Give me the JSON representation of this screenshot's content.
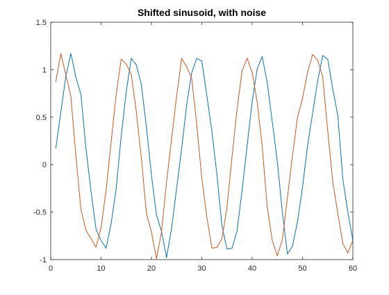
{
  "chart_data": {
    "type": "line",
    "title": "Shifted sinusoid, with noise",
    "xlabel": "",
    "ylabel": "",
    "xlim": [
      0,
      60
    ],
    "ylim": [
      -1,
      1.5
    ],
    "xticks": [
      0,
      10,
      20,
      30,
      40,
      50,
      60
    ],
    "xtick_labels": [
      "0",
      "10",
      "20",
      "30",
      "40",
      "50",
      "60"
    ],
    "yticks": [
      -1,
      -0.5,
      0,
      0.5,
      1,
      1.5
    ],
    "ytick_labels": [
      "-1",
      "-0.5",
      "0",
      "0.5",
      "1",
      "1.5"
    ],
    "grid": false,
    "legend": "none",
    "series": [
      {
        "color": "#0072BD",
        "x": [
          1,
          2,
          3,
          4,
          5,
          6,
          7,
          8,
          9,
          10,
          11,
          12,
          13,
          14,
          15,
          16,
          17,
          18,
          19,
          20,
          21,
          22,
          23,
          24,
          25,
          26,
          27,
          28,
          29,
          30,
          31,
          32,
          33,
          34,
          35,
          36,
          37,
          38,
          39,
          40,
          41,
          42,
          43,
          44,
          45,
          46,
          47,
          48,
          49,
          50,
          51,
          52,
          53,
          54,
          55,
          56,
          57,
          58,
          59,
          60
        ],
        "y": [
          0.17,
          0.55,
          0.93,
          1.17,
          0.92,
          0.74,
          0.17,
          -0.28,
          -0.68,
          -0.8,
          -0.88,
          -0.62,
          -0.25,
          0.3,
          0.77,
          1.12,
          1.05,
          0.84,
          0.4,
          -0.11,
          -0.53,
          -0.7,
          -0.98,
          -0.67,
          -0.25,
          0.17,
          0.63,
          0.97,
          1.12,
          1.09,
          0.73,
          0.35,
          -0.1,
          -0.64,
          -0.89,
          -0.88,
          -0.7,
          -0.27,
          0.2,
          0.66,
          1.01,
          1.14,
          0.86,
          0.45,
          0.03,
          -0.5,
          -0.94,
          -0.86,
          -0.6,
          -0.24,
          0.2,
          0.54,
          0.88,
          1.15,
          1.11,
          0.8,
          0.52,
          -0.15,
          -0.5,
          -0.8
        ]
      },
      {
        "color": "#D95319",
        "x": [
          1,
          2,
          3,
          4,
          5,
          6,
          7,
          8,
          9,
          10,
          11,
          12,
          13,
          14,
          15,
          16,
          17,
          18,
          19,
          20,
          21,
          22,
          23,
          24,
          25,
          26,
          27,
          28,
          29,
          30,
          31,
          32,
          33,
          34,
          35,
          36,
          37,
          38,
          39,
          40,
          41,
          42,
          43,
          44,
          45,
          46,
          47,
          48,
          49,
          50,
          51,
          52,
          53,
          54,
          55,
          56,
          57,
          58,
          59,
          60
        ],
        "y": [
          0.87,
          1.17,
          0.95,
          0.72,
          0.09,
          -0.47,
          -0.69,
          -0.78,
          -0.87,
          -0.66,
          -0.27,
          0.24,
          0.74,
          1.11,
          1.06,
          0.95,
          0.56,
          0.07,
          -0.51,
          -0.71,
          -0.99,
          -0.71,
          -0.18,
          0.27,
          0.72,
          1.12,
          1.03,
          0.91,
          0.42,
          -0.14,
          -0.55,
          -0.88,
          -0.87,
          -0.78,
          -0.45,
          0.08,
          0.58,
          0.99,
          1.12,
          0.97,
          0.66,
          0.19,
          -0.45,
          -0.8,
          -0.96,
          -0.79,
          -0.35,
          0.09,
          0.5,
          0.7,
          0.97,
          1.16,
          1.1,
          0.93,
          0.36,
          -0.18,
          -0.51,
          -0.83,
          -0.93,
          -0.8
        ]
      }
    ]
  }
}
